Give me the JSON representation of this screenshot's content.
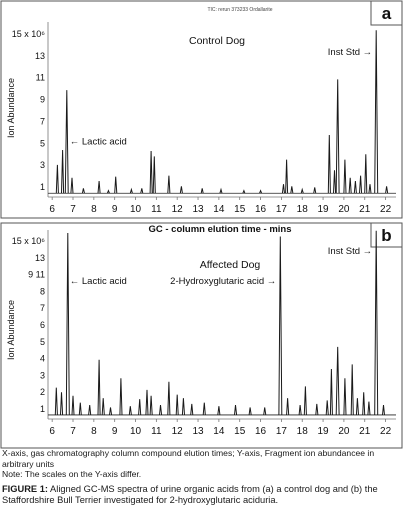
{
  "axis_xlabel": "GC - column elution time - mins",
  "x_ticks": [
    6,
    7,
    8,
    9,
    10,
    11,
    12,
    13,
    14,
    15,
    16,
    17,
    18,
    19,
    20,
    21,
    22
  ],
  "x_range": [
    5.8,
    22.5
  ],
  "panels": [
    {
      "letter": "a",
      "header": "TIC: rerun 373233 Ordallarite",
      "title": "Control Dog",
      "ylabel": "Ion Abundance",
      "y_ticks": [
        "1",
        "3",
        "5",
        "7",
        "9",
        "11",
        "13",
        "15 x 10⁶"
      ],
      "annotations": [
        {
          "text": "← Lactic acid",
          "x": 6.7,
          "y": 4.9
        },
        {
          "text": "Inst Std →",
          "x": 21.5,
          "y": 13.3
        }
      ]
    },
    {
      "letter": "b",
      "header": "",
      "title": "Affected Dog",
      "ylabel": "Ion Abundance",
      "y_ticks": [
        "1",
        "2",
        "3",
        "4",
        "5",
        "6",
        "7",
        "8",
        "9 11",
        "13",
        "15 x 10⁶"
      ],
      "annotations": [
        {
          "text": "← Lactic acid",
          "x": 6.7,
          "y": 11.6
        },
        {
          "text": "2-Hydroxyglutaric acid →",
          "x": 16.9,
          "y": 11.6
        },
        {
          "text": "Inst Std →",
          "x": 21.5,
          "y": 14.2
        }
      ]
    }
  ],
  "chart_data": [
    {
      "type": "line",
      "panel": "a",
      "title": "Control Dog",
      "xlabel": "GC - column elution time - mins",
      "ylabel": "Ion Abundance",
      "xlim": [
        5.8,
        22.5
      ],
      "ylim": [
        0,
        16
      ],
      "peaks": [
        {
          "x": 6.25,
          "y": 3.0
        },
        {
          "x": 6.5,
          "y": 4.4
        },
        {
          "x": 6.7,
          "y": 10.0
        },
        {
          "x": 6.95,
          "y": 1.8
        },
        {
          "x": 7.5,
          "y": 0.8
        },
        {
          "x": 8.25,
          "y": 1.5
        },
        {
          "x": 8.7,
          "y": 0.6
        },
        {
          "x": 9.05,
          "y": 1.9
        },
        {
          "x": 9.8,
          "y": 0.7
        },
        {
          "x": 10.3,
          "y": 0.8
        },
        {
          "x": 10.75,
          "y": 4.3
        },
        {
          "x": 10.9,
          "y": 3.8
        },
        {
          "x": 11.6,
          "y": 2.0
        },
        {
          "x": 12.2,
          "y": 1.0
        },
        {
          "x": 13.2,
          "y": 0.8
        },
        {
          "x": 14.1,
          "y": 0.7
        },
        {
          "x": 15.2,
          "y": 0.6
        },
        {
          "x": 16.0,
          "y": 0.6
        },
        {
          "x": 17.1,
          "y": 1.2
        },
        {
          "x": 17.25,
          "y": 3.5
        },
        {
          "x": 17.5,
          "y": 1.0
        },
        {
          "x": 18.0,
          "y": 0.7
        },
        {
          "x": 18.6,
          "y": 0.9
        },
        {
          "x": 19.3,
          "y": 5.8
        },
        {
          "x": 19.55,
          "y": 2.5
        },
        {
          "x": 19.7,
          "y": 11.0
        },
        {
          "x": 20.05,
          "y": 3.5
        },
        {
          "x": 20.3,
          "y": 1.8
        },
        {
          "x": 20.55,
          "y": 1.5
        },
        {
          "x": 20.8,
          "y": 2.0
        },
        {
          "x": 21.05,
          "y": 4.0
        },
        {
          "x": 21.25,
          "y": 1.2
        },
        {
          "x": 21.55,
          "y": 15.6
        },
        {
          "x": 22.05,
          "y": 1.0
        }
      ]
    },
    {
      "type": "line",
      "panel": "b",
      "title": "Affected Dog",
      "xlabel": "GC - column elution time - mins",
      "ylabel": "Ion Abundance",
      "xlim": [
        5.8,
        22.5
      ],
      "ylim": [
        0,
        16
      ],
      "peaks": [
        {
          "x": 6.2,
          "y": 2.7
        },
        {
          "x": 6.45,
          "y": 2.3
        },
        {
          "x": 6.75,
          "y": 16.0
        },
        {
          "x": 7.0,
          "y": 2.0
        },
        {
          "x": 7.35,
          "y": 1.4
        },
        {
          "x": 7.8,
          "y": 1.2
        },
        {
          "x": 8.25,
          "y": 5.1
        },
        {
          "x": 8.45,
          "y": 1.8
        },
        {
          "x": 8.8,
          "y": 1.0
        },
        {
          "x": 9.3,
          "y": 3.5
        },
        {
          "x": 9.75,
          "y": 1.1
        },
        {
          "x": 10.2,
          "y": 1.7
        },
        {
          "x": 10.55,
          "y": 2.5
        },
        {
          "x": 10.75,
          "y": 2.0
        },
        {
          "x": 11.2,
          "y": 1.2
        },
        {
          "x": 11.6,
          "y": 3.2
        },
        {
          "x": 12.0,
          "y": 2.1
        },
        {
          "x": 12.3,
          "y": 1.8
        },
        {
          "x": 12.7,
          "y": 1.3
        },
        {
          "x": 13.3,
          "y": 1.4
        },
        {
          "x": 14.0,
          "y": 1.1
        },
        {
          "x": 14.8,
          "y": 1.2
        },
        {
          "x": 15.5,
          "y": 1.0
        },
        {
          "x": 16.2,
          "y": 1.0
        },
        {
          "x": 16.95,
          "y": 15.7
        },
        {
          "x": 17.3,
          "y": 1.8
        },
        {
          "x": 17.9,
          "y": 1.2
        },
        {
          "x": 18.15,
          "y": 2.8
        },
        {
          "x": 18.7,
          "y": 1.3
        },
        {
          "x": 19.2,
          "y": 1.6
        },
        {
          "x": 19.4,
          "y": 4.3
        },
        {
          "x": 19.7,
          "y": 6.2
        },
        {
          "x": 20.05,
          "y": 3.5
        },
        {
          "x": 20.4,
          "y": 4.7
        },
        {
          "x": 20.65,
          "y": 1.8
        },
        {
          "x": 20.95,
          "y": 2.3
        },
        {
          "x": 21.2,
          "y": 1.5
        },
        {
          "x": 21.55,
          "y": 16.2
        },
        {
          "x": 21.9,
          "y": 1.2
        }
      ]
    }
  ],
  "caption": {
    "line1": "X-axis, gas chromatography column compound elution times; Y-axis, Fragment ion abundancee in arbitrary units",
    "line2": "Note: The scales on the Y-axis differ.",
    "fig_label": "FIGURE 1:",
    "fig_text": " Aligned GC-MS spectra of urine organic acids from (a) a control dog and (b) the Staffordshire Bull Terrier investigated for 2-hydroxyglutaric aciduria."
  }
}
